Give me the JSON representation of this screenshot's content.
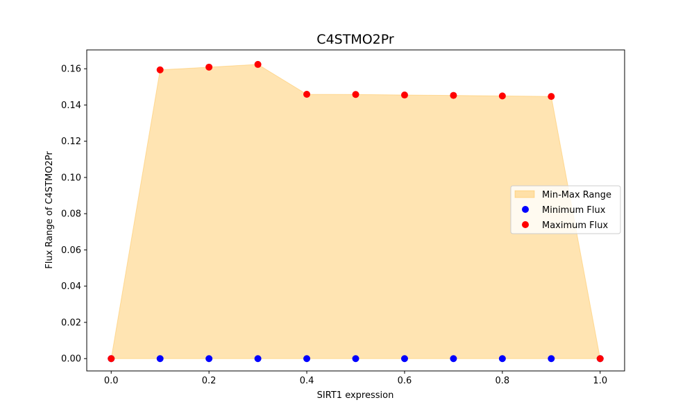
{
  "chart_data": {
    "type": "area",
    "title": "C4STMO2Pr",
    "xlabel": "SIRT1 expression",
    "ylabel": "Flux Range of C4STMO2Pr",
    "xlim": [
      -0.05,
      1.05
    ],
    "ylim": [
      -0.0068,
      0.1704
    ],
    "x_ticks": [
      0.0,
      0.2,
      0.4,
      0.6,
      0.8,
      1.0
    ],
    "y_ticks": [
      0.0,
      0.02,
      0.04,
      0.06,
      0.08,
      0.1,
      0.12,
      0.14,
      0.16
    ],
    "x": [
      0.0,
      0.1,
      0.2,
      0.3,
      0.4,
      0.5,
      0.6,
      0.7,
      0.8,
      0.9,
      1.0
    ],
    "series": [
      {
        "name": "Minimum Flux",
        "kind": "scatter",
        "color": "#0000ff",
        "values": [
          0,
          0,
          0,
          0,
          0,
          0,
          0,
          0,
          0,
          0,
          0
        ]
      },
      {
        "name": "Maximum Flux",
        "kind": "scatter",
        "color": "#ff0000",
        "values": [
          0,
          0.1594,
          0.1609,
          0.1624,
          0.1459,
          0.1458,
          0.1455,
          0.1453,
          0.145,
          0.1447,
          0
        ]
      }
    ],
    "fill": {
      "name": "Min-Max Range",
      "color": "#ffa500",
      "opacity": 0.3
    },
    "legend": {
      "position": "center-right",
      "entries": [
        "Min-Max Range",
        "Minimum Flux",
        "Maximum Flux"
      ]
    }
  }
}
